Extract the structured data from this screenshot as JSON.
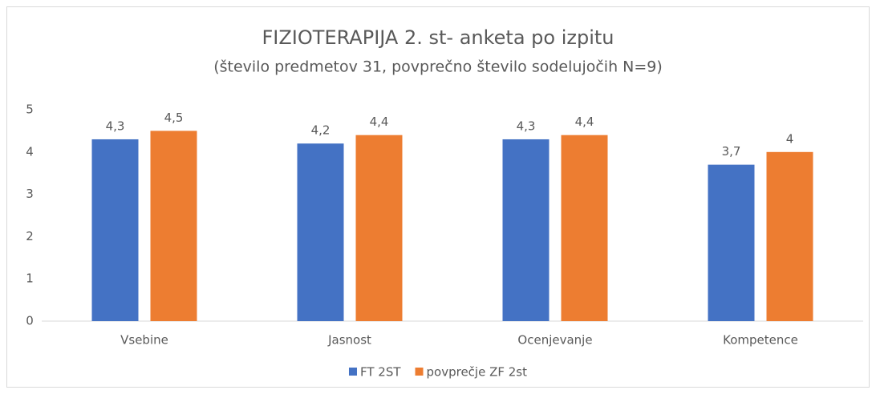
{
  "chart_data": {
    "type": "bar",
    "title": "FIZIOTERAPIJA 2. st- anketa po izpitu",
    "subtitle": "(število predmetov 31, povprečno število sodelujočih N=9)",
    "categories": [
      "Vsebine",
      "Jasnost",
      "Ocenjevanje",
      "Kompetence"
    ],
    "series": [
      {
        "name": "FT 2ST",
        "color": "#4472c4",
        "values": [
          4.3,
          4.2,
          4.3,
          3.7
        ],
        "value_labels": [
          "4,3",
          "4,2",
          "4,3",
          "3,7"
        ]
      },
      {
        "name": "povprečje ZF 2st",
        "color": "#ed7d31",
        "values": [
          4.5,
          4.4,
          4.4,
          4
        ],
        "value_labels": [
          "4,5",
          "4,4",
          "4,4",
          "4"
        ]
      }
    ],
    "ylim": [
      0,
      5
    ],
    "yticks": [
      0,
      1,
      2,
      3,
      4,
      5
    ],
    "grid": false,
    "legend": "bottom"
  }
}
